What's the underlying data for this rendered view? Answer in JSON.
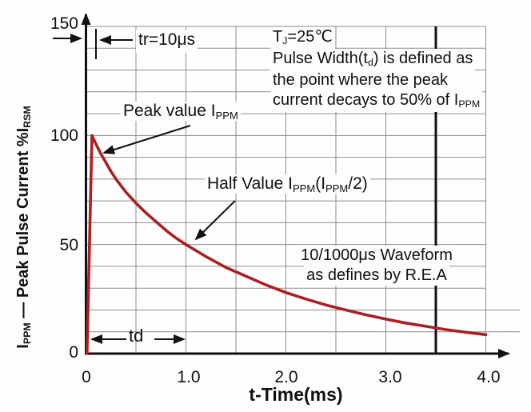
{
  "colors": {
    "curve": "#a92125",
    "grid": "#8c8c8c",
    "axis": "#111111",
    "marker_line": "#111111",
    "text": "#111111",
    "background": "#fefefe"
  },
  "y_axis": {
    "title_parts": [
      {
        "t": "I"
      },
      {
        "t": "PPM",
        "sub": true
      },
      {
        "t": " — Peak Pulse Current  %I"
      },
      {
        "t": "RSM",
        "sub": true
      }
    ],
    "ticks": [
      "0",
      "50",
      "100",
      "150"
    ]
  },
  "x_axis": {
    "title": "t-Time(ms)",
    "ticks": [
      "0",
      "1.0",
      "2.0",
      "3.0",
      "4.0"
    ]
  },
  "annotations": {
    "tr_label": "tr=10μs",
    "td_label": "td",
    "peak_parts": [
      {
        "t": "Peak value I"
      },
      {
        "t": "PPM",
        "sub": true
      }
    ],
    "half_parts": [
      {
        "t": "Half Value I"
      },
      {
        "t": "PPM",
        "sub": true
      },
      {
        "t": "(I"
      },
      {
        "t": "PPM",
        "sub": true
      },
      {
        "t": "/2)"
      }
    ],
    "tj_lines": [
      [
        {
          "t": "T"
        },
        {
          "t": "J",
          "sub": true
        },
        {
          "t": "=25℃"
        }
      ],
      [
        {
          "t": "Pulse Width(t"
        },
        {
          "t": "d",
          "sub": true
        },
        {
          "t": ") is defined as"
        }
      ],
      [
        {
          "t": "the point where the peak"
        }
      ],
      [
        {
          "t": "current decays to 50% of I"
        },
        {
          "t": "PPM",
          "sub": true
        }
      ]
    ],
    "waveform_lines": [
      "10/1000μs Waveform",
      "as defines by R.E.A"
    ]
  },
  "chart_data": {
    "type": "line",
    "title": "",
    "xlabel": "t-Time(ms)",
    "ylabel": "IPPM — Peak Pulse Current %IRSM",
    "xlim": [
      0,
      4.0
    ],
    "ylim": [
      0,
      150
    ],
    "x_ticks": [
      0,
      1.0,
      2.0,
      3.0,
      4.0
    ],
    "y_ticks": [
      0,
      50,
      100,
      150
    ],
    "x_minor_grid_step": 0.5,
    "y_minor_grid_step": 10,
    "grid": true,
    "legend_position": "none",
    "marker_line_x": 3.5,
    "rise_time_us": 10,
    "half_value_time_ms": 1.0,
    "series": [
      {
        "name": "10/1000μs pulse waveform (% of IPPM)",
        "x": [
          0.01,
          0.06,
          0.1,
          0.15,
          0.2,
          0.25,
          0.3,
          0.4,
          0.5,
          0.6,
          0.7,
          0.8,
          0.9,
          1.0,
          1.2,
          1.4,
          1.6,
          1.8,
          2.0,
          2.2,
          2.4,
          2.6,
          2.8,
          3.0,
          3.2,
          3.4,
          3.6,
          3.8,
          4.0
        ],
        "y": [
          0,
          100,
          96,
          91.5,
          87.5,
          83.5,
          80,
          74,
          69,
          64.5,
          60.5,
          56.5,
          53,
          50,
          44.5,
          39.5,
          35.5,
          31.5,
          28,
          25,
          22.3,
          20,
          17.8,
          15.8,
          14,
          12.5,
          11,
          9.8,
          8.7
        ]
      }
    ]
  }
}
